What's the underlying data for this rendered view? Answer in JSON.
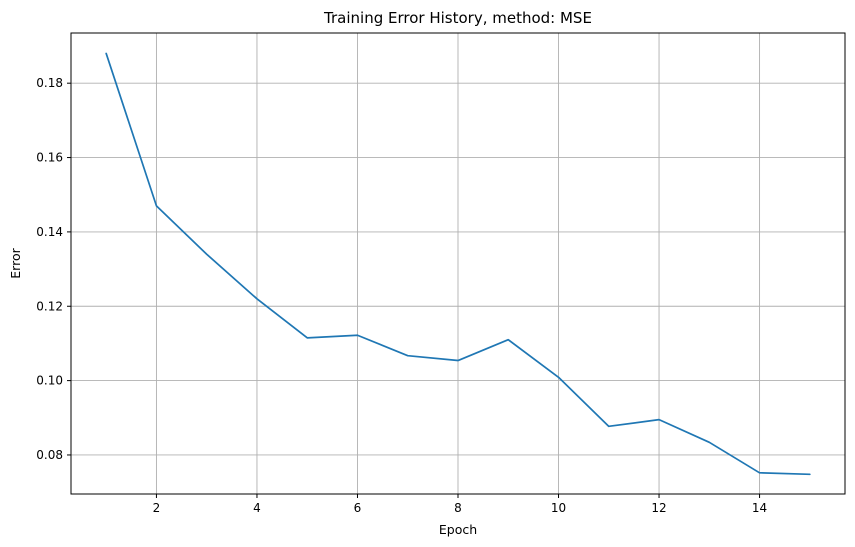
{
  "chart_data": {
    "type": "line",
    "title": "Training Error History, method: MSE",
    "xlabel": "Epoch",
    "ylabel": "Error",
    "xlim": [
      0.3,
      15.7
    ],
    "ylim": [
      0.0695,
      0.1935
    ],
    "xticks": [
      2,
      4,
      6,
      8,
      10,
      12,
      14
    ],
    "xtick_labels": [
      "2",
      "4",
      "6",
      "8",
      "10",
      "12",
      "14"
    ],
    "yticks": [
      0.08,
      0.1,
      0.12,
      0.14,
      0.16,
      0.18
    ],
    "ytick_labels": [
      "0.08",
      "0.10",
      "0.12",
      "0.14",
      "0.16",
      "0.18"
    ],
    "grid": true,
    "colors": {
      "line": "#1f77b4",
      "grid": "#b0b0b0",
      "axis": "#000000"
    },
    "series": [
      {
        "x": [
          1,
          2,
          3,
          4,
          5,
          6,
          7,
          8,
          9,
          10,
          11,
          12,
          13,
          14,
          15
        ],
        "values": [
          0.188,
          0.147,
          0.134,
          0.122,
          0.1115,
          0.1122,
          0.1067,
          0.1054,
          0.111,
          0.1009,
          0.0877,
          0.0895,
          0.0834,
          0.0752,
          0.0748
        ]
      }
    ]
  }
}
